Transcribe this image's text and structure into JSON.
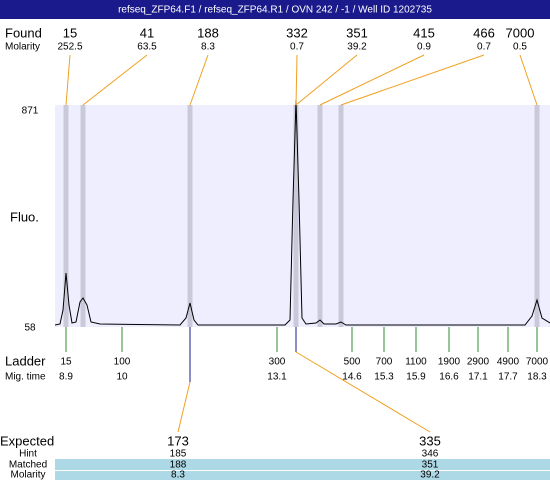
{
  "title": "refseq_ZFP64.F1 / refseq_ZFP64.R1 / OVN 242 / -1 / Well ID 1202735",
  "found": {
    "label": "Found",
    "molarity_label": "Molarity",
    "peaks": [
      {
        "size": "15",
        "molarity": "252.5"
      },
      {
        "size": "41",
        "molarity": "63.5"
      },
      {
        "size": "188",
        "molarity": "8.3"
      },
      {
        "size": "332",
        "molarity": "0.7"
      },
      {
        "size": "351",
        "molarity": "39.2"
      },
      {
        "size": "415",
        "molarity": "0.9"
      },
      {
        "size": "466",
        "molarity": "0.7"
      },
      {
        "size": "7000",
        "molarity": "0.5"
      }
    ]
  },
  "yaxis": {
    "label": "Fluo.",
    "max": "871",
    "min": "58"
  },
  "ladder": {
    "label": "Ladder",
    "time_label": "Mig. time",
    "points": [
      {
        "size": "15",
        "time": "8.9"
      },
      {
        "size": "100",
        "time": "10"
      },
      {
        "size": "300",
        "time": "13.1"
      },
      {
        "size": "500",
        "time": "14.6"
      },
      {
        "size": "700",
        "time": "15.3"
      },
      {
        "size": "1100",
        "time": "15.9"
      },
      {
        "size": "1900",
        "time": "16.6"
      },
      {
        "size": "2900",
        "time": "17.1"
      },
      {
        "size": "4900",
        "time": "17.7"
      },
      {
        "size": "7000",
        "time": "18.3"
      }
    ]
  },
  "expected": {
    "label": "Expected",
    "hint_label": "Hint",
    "matched_label": "Matched",
    "molarity_label": "Molarity",
    "items": [
      {
        "expected": "173",
        "hint": "185",
        "matched": "188",
        "molarity": "8.3"
      },
      {
        "expected": "335",
        "hint": "346",
        "matched": "351",
        "molarity": "39.2"
      }
    ]
  }
}
